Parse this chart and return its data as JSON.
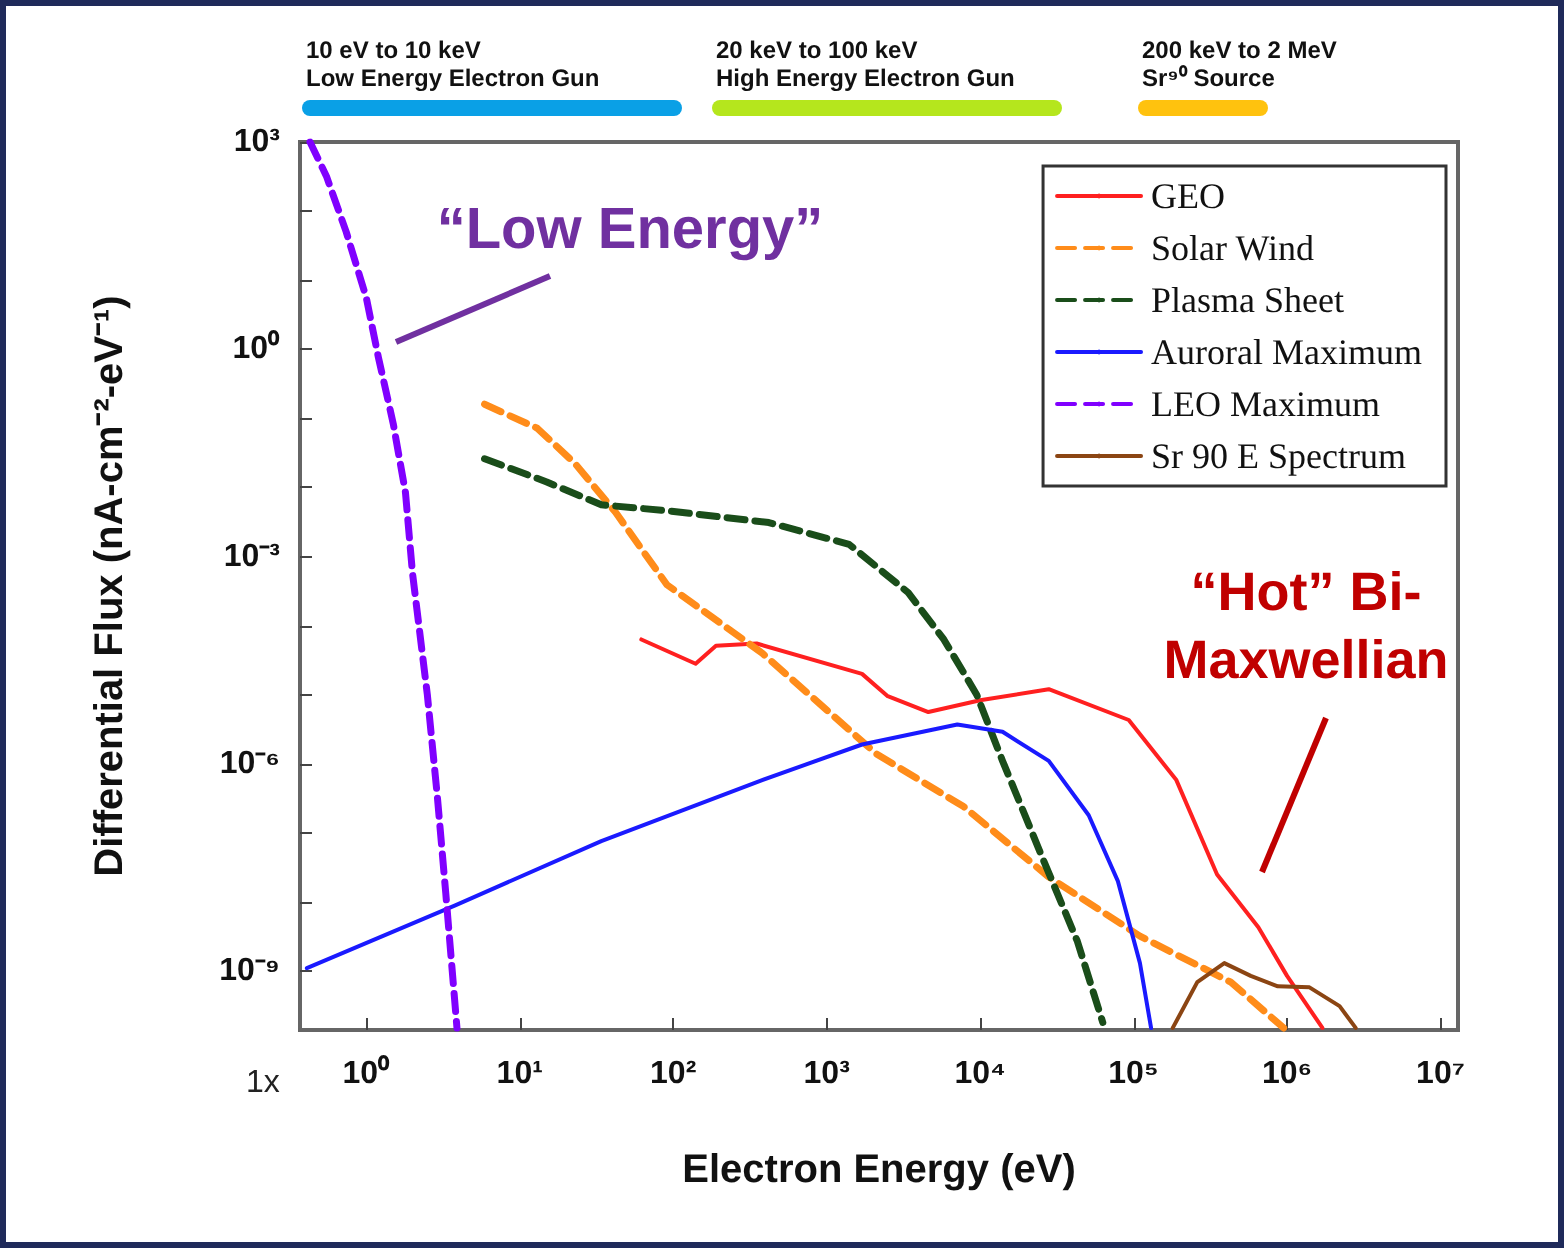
{
  "chart_data": {
    "type": "line",
    "xlabel": "Electron Energy (eV)",
    "ylabel": "Differential Flux (nA-cm⁻²-eV⁻¹)",
    "log": "xy",
    "grid": false,
    "legend": "top right",
    "marker": "none",
    "xlim": [
      0.37,
      13000000
    ],
    "ylim": [
      1.4e-10,
      1000
    ],
    "xticks": [
      {
        "value": 1,
        "label": "10⁰"
      },
      {
        "value": 10,
        "label": "10¹"
      },
      {
        "value": 100,
        "label": "10²"
      },
      {
        "value": 1000,
        "label": "10³"
      },
      {
        "value": 10000,
        "label": "10⁴"
      },
      {
        "value": 100000,
        "label": "10⁵"
      },
      {
        "value": 1000000,
        "label": "10⁶"
      },
      {
        "value": 10000000,
        "label": "10⁷"
      }
    ],
    "yticks": [
      {
        "value": 1e-09,
        "label": "10⁻⁹"
      },
      {
        "value": 1e-08,
        "label": null
      },
      {
        "value": 1e-07,
        "label": null
      },
      {
        "value": 1e-06,
        "label": "10⁻⁶"
      },
      {
        "value": 1e-05,
        "label": null
      },
      {
        "value": 0.0001,
        "label": null
      },
      {
        "value": 0.001,
        "label": "10⁻³"
      },
      {
        "value": 0.01,
        "label": null
      },
      {
        "value": 0.1,
        "label": null
      },
      {
        "value": 1,
        "label": "10⁰"
      },
      {
        "value": 10,
        "label": null
      },
      {
        "value": 100,
        "label": null
      },
      {
        "value": 1000,
        "label": "10³"
      }
    ],
    "series": [
      {
        "name": "GEO",
        "color": "#ff2020",
        "line_style": "solid",
        "x": [
          62,
          140,
          190,
          350,
          1700,
          2500,
          4600,
          10000,
          28000,
          93000,
          190000,
          350000,
          650000,
          1000000,
          1700000
        ],
        "values": [
          6.3e-05,
          2.8e-05,
          5.1e-05,
          5.5e-05,
          2e-05,
          9.5e-06,
          5.6e-06,
          8.3e-06,
          1.2e-05,
          4.3e-06,
          5.8e-07,
          2.5e-08,
          4.3e-09,
          8.5e-10,
          1.5e-10
        ]
      },
      {
        "name": "Solar Wind",
        "color": "#ff8c1a",
        "line_style": "dashed",
        "x": [
          5.9,
          13,
          23,
          42,
          91,
          380,
          2100,
          7800,
          28000,
          110000,
          430000,
          950000
        ],
        "values": [
          0.16,
          0.072,
          0.022,
          0.0044,
          0.00039,
          4e-05,
          1.4e-06,
          2.4e-07,
          2.3e-08,
          3.2e-09,
          6.9e-10,
          1.5e-10
        ]
      },
      {
        "name": "Plasma Sheet",
        "color": "#1a4d1a",
        "line_style": "dashed",
        "x": [
          5.9,
          15,
          34,
          91,
          420,
          1400,
          3400,
          5800,
          9500,
          14000,
          26000,
          43000,
          63000
        ],
        "values": [
          0.026,
          0.012,
          0.0056,
          0.0046,
          0.0031,
          0.0015,
          0.0003,
          6.3e-05,
          1e-05,
          1.1e-06,
          3.9e-08,
          2.7e-09,
          1.8e-10
        ]
      },
      {
        "name": "Auroral Maximum",
        "color": "#1a1aff",
        "line_style": "solid",
        "x": [
          0.41,
          3.8,
          34,
          380,
          1700,
          7100,
          14000,
          28000,
          51000,
          79000,
          110000,
          130000
        ],
        "values": [
          1.1e-09,
          8.9e-09,
          7.6e-08,
          5.8e-07,
          1.9e-06,
          3.7e-06,
          2.9e-06,
          1.1e-06,
          1.8e-07,
          2e-08,
          1.3e-09,
          1.5e-10
        ]
      },
      {
        "name": "LEO Maximum",
        "color": "#8000ff",
        "line_style": "dashed",
        "x": [
          0.43,
          0.55,
          0.74,
          1,
          1.2,
          1.5,
          1.8,
          2.0,
          2.5,
          2.9,
          3.3,
          3.9
        ],
        "values": [
          1000,
          320,
          50,
          5.6,
          0.76,
          0.083,
          0.0085,
          0.00058,
          1e-05,
          3.5e-07,
          1.3e-08,
          1.5e-10
        ]
      },
      {
        "name": "Sr 90 E Spectrum",
        "color": "#8b4513",
        "line_style": "solid",
        "x": [
          180000,
          260000,
          390000,
          580000,
          870000,
          1400000,
          2200000,
          2800000
        ],
        "values": [
          1.5e-10,
          6.9e-10,
          1.3e-09,
          8.5e-10,
          6e-10,
          5.8e-10,
          3.1e-10,
          1.5e-10
        ]
      }
    ],
    "annotations": [
      "10 eV to 10 keV\nLow Energy Electron Gun",
      "20 keV to 100 keV\nHigh Energy Electron Gun",
      "200 keV to 2 MeV\nSr⁹⁰ Source",
      "1x",
      "“Low Energy”",
      "“Hot” Bi-\nMaxwellian"
    ]
  }
}
